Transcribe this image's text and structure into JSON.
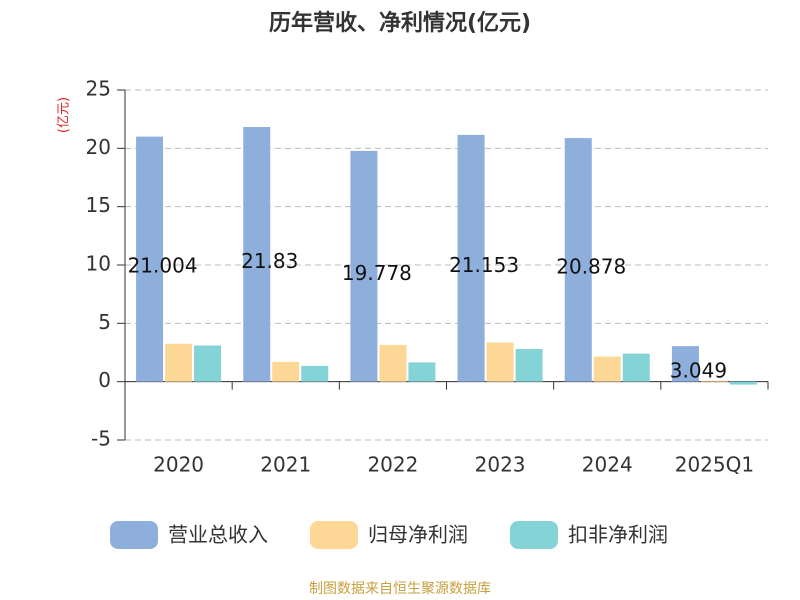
{
  "chart_data": {
    "type": "bar",
    "title": "历年营收、净利情况(亿元)",
    "y_unit": "(亿元)",
    "categories": [
      "2020",
      "2021",
      "2022",
      "2023",
      "2024",
      "2025Q1"
    ],
    "series": [
      {
        "name": "营业总收入",
        "color": "#8eaedb",
        "values": [
          21.004,
          21.83,
          19.778,
          21.153,
          20.878,
          3.049
        ]
      },
      {
        "name": "归母净利润",
        "color": "#fdd795",
        "values": [
          3.25,
          1.7,
          3.15,
          3.35,
          2.15,
          0.08
        ]
      },
      {
        "name": "扣非净利润",
        "color": "#84d4d7",
        "values": [
          3.1,
          1.35,
          1.65,
          2.8,
          2.4,
          -0.25
        ]
      }
    ],
    "ylim": [
      -5,
      25
    ],
    "yticks": [
      -5,
      0,
      5,
      10,
      15,
      20,
      25
    ],
    "grid": true,
    "source": "制图数据来自恒生聚源数据库"
  }
}
